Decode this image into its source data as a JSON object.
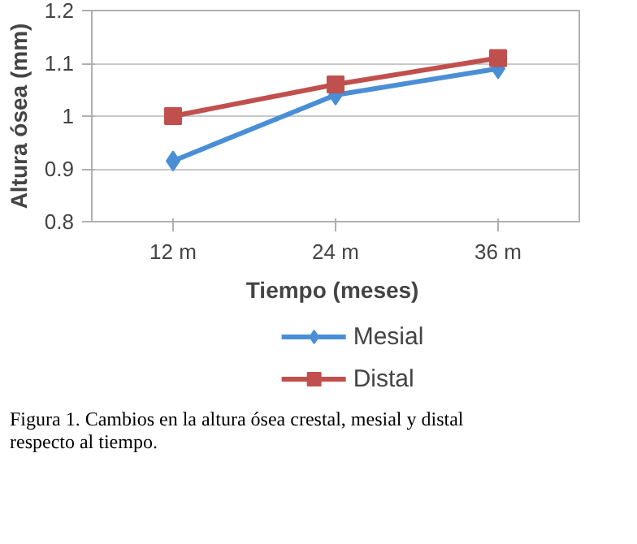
{
  "chart_data": {
    "type": "line",
    "xlabel": "Tiempo  (meses)",
    "ylabel": "Altura ósea (mm)",
    "categories": [
      "12 m",
      "24 m",
      "36 m"
    ],
    "series": [
      {
        "name": "Mesial",
        "color": "#4a8fd6",
        "values": [
          0.915,
          1.04,
          1.09
        ],
        "marker": "diamond"
      },
      {
        "name": "Distal",
        "color": "#c0504d",
        "values": [
          1.0,
          1.06,
          1.11
        ],
        "marker": "square"
      }
    ],
    "ylim": [
      0.8,
      1.2
    ],
    "yticks": [
      0.8,
      0.9,
      1,
      1.1,
      1.2
    ],
    "grid": "y",
    "legend": "bottom",
    "annotations": [
      "Figura 1. Cambios en la altura ósea crestal, mesial y distal\nrespecto al tiempo."
    ]
  }
}
